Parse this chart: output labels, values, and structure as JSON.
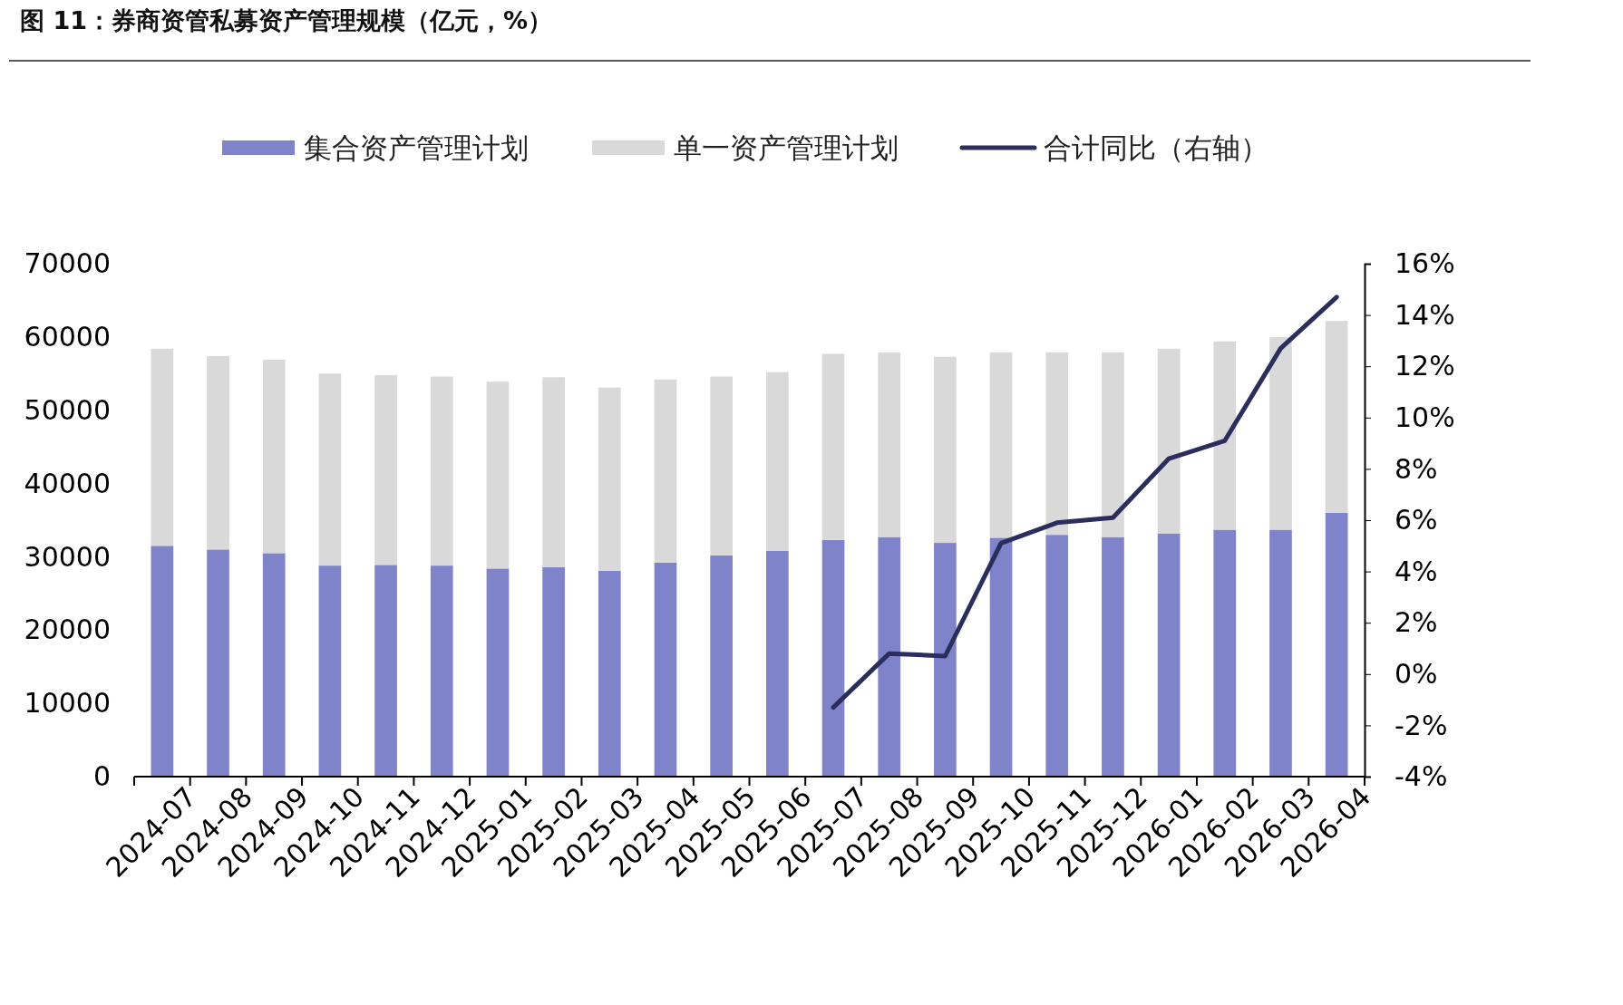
{
  "chart_data": {
    "type": "bar",
    "title": "图 11：券商资管私募资产管理规模（亿元，%）",
    "categories": [
      "2024-07",
      "2024-08",
      "2024-09",
      "2024-10",
      "2024-11",
      "2024-12",
      "2025-01",
      "2025-02",
      "2025-03",
      "2025-04",
      "2025-05",
      "2025-06",
      "2025-07",
      "2025-08",
      "2025-09",
      "2025-10",
      "2025-11",
      "2025-12",
      "2026-01",
      "2026-02",
      "2026-03",
      "2026-04"
    ],
    "stacked": true,
    "legend": "top",
    "ylim": [
      0,
      70000
    ],
    "yticks": [
      0,
      10000,
      20000,
      30000,
      40000,
      50000,
      60000,
      70000
    ],
    "y2lim": [
      -4,
      16
    ],
    "y2ticks": [
      {
        "value": -4,
        "label": "-4%"
      },
      {
        "value": -2,
        "label": "-2%"
      },
      {
        "value": 0,
        "label": "0%"
      },
      {
        "value": 2,
        "label": "2%"
      },
      {
        "value": 4,
        "label": "4%"
      },
      {
        "value": 6,
        "label": "6%"
      },
      {
        "value": 8,
        "label": "8%"
      },
      {
        "value": 10,
        "label": "10%"
      },
      {
        "value": 12,
        "label": "12%"
      },
      {
        "value": 14,
        "label": "14%"
      },
      {
        "value": 16,
        "label": "16%"
      }
    ],
    "series": [
      {
        "name": "集合资产管理计划",
        "color": "#7f83c9",
        "values": [
          31500,
          31000,
          30500,
          28800,
          28900,
          28800,
          28400,
          28600,
          28100,
          29200,
          30200,
          30800,
          32300,
          32700,
          31900,
          32600,
          33000,
          32700,
          33200,
          33700,
          33700,
          36000
        ]
      },
      {
        "name": "单一资产管理计划",
        "color": "#d9d9d9",
        "values": [
          26900,
          26400,
          26400,
          26200,
          25900,
          25800,
          25500,
          25900,
          25000,
          25000,
          24400,
          24400,
          25400,
          25200,
          25400,
          25300,
          24900,
          25200,
          25200,
          25700,
          26300,
          26200
        ]
      },
      {
        "name": "合计同比（右轴）",
        "type": "line",
        "axis": "y2",
        "color": "#2b2d5c",
        "marker": "none",
        "values": [
          null,
          null,
          null,
          null,
          null,
          null,
          null,
          null,
          null,
          null,
          null,
          null,
          -1.3,
          0.8,
          0.7,
          5.1,
          5.9,
          6.1,
          8.4,
          9.1,
          12.7,
          14.7
        ]
      }
    ]
  }
}
